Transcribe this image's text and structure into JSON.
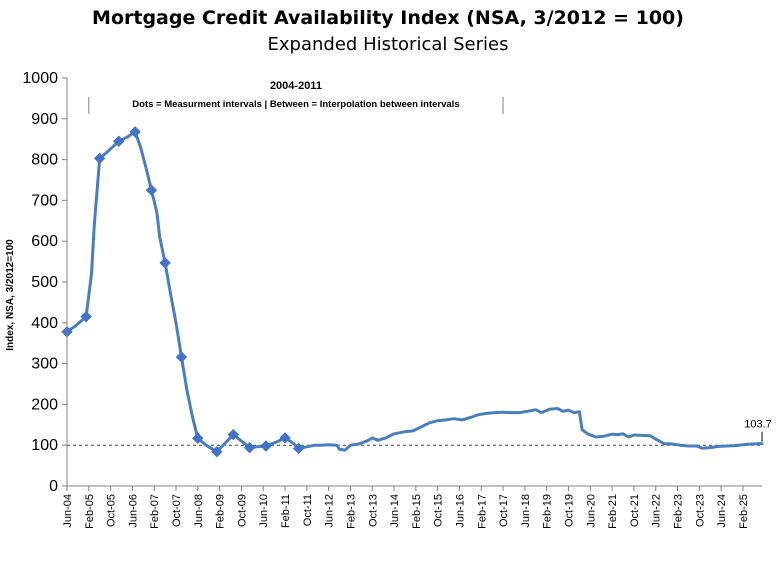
{
  "chart_data": {
    "type": "line",
    "title": "Mortgage Credit Availability Index (NSA, 3/2012 = 100)",
    "subtitle": "Expanded Historical Series",
    "ylabel": "Index, NSA, 3/2012=100",
    "ylim": [
      0,
      1000
    ],
    "yticks": [
      0,
      100,
      200,
      300,
      400,
      500,
      600,
      700,
      800,
      900,
      1000
    ],
    "x_tick_labels": [
      "Jun-04",
      "Feb-05",
      "Oct-05",
      "Jun-06",
      "Feb-07",
      "Oct-07",
      "Jun-08",
      "Feb-09",
      "Oct-09",
      "Jun-10",
      "Feb-11",
      "Oct-11",
      "Jun-12",
      "Feb-13",
      "Oct-13",
      "Jun-14",
      "Feb-15",
      "Oct-15",
      "Jun-16",
      "Feb-17",
      "Oct-17",
      "Jun-18",
      "Feb-19",
      "Oct-19",
      "Jun-20",
      "Feb-21",
      "Oct-21",
      "Jun-22",
      "Feb-23",
      "Oct-23",
      "Jun-24",
      "Feb-25"
    ],
    "x_start": "2004-06",
    "x_end": "2025-09",
    "reference_line": 100,
    "annotation": {
      "heading": "2004-2011",
      "text": "Dots = Measurment intervals  |  Between = Interpolation between intervals",
      "x_from": "2005-02",
      "x_to": "2017-10"
    },
    "end_label": "103.7",
    "series": [
      {
        "color": "#4a7ebb",
        "marker_color": "#4472c4",
        "measurement_points": [
          [
            "2004-06",
            378
          ],
          [
            "2005-01",
            415
          ],
          [
            "2005-06",
            803
          ],
          [
            "2006-01",
            845
          ],
          [
            "2006-07",
            868
          ],
          [
            "2007-01",
            725
          ],
          [
            "2007-06",
            547
          ],
          [
            "2007-12",
            316
          ],
          [
            "2008-06",
            117
          ],
          [
            "2009-01",
            84
          ],
          [
            "2009-07",
            126
          ],
          [
            "2010-01",
            94
          ],
          [
            "2010-07",
            98
          ],
          [
            "2011-02",
            118
          ],
          [
            "2011-07",
            92
          ]
        ],
        "points": [
          [
            "2004-06",
            378
          ],
          [
            "2004-09",
            392
          ],
          [
            "2005-01",
            415
          ],
          [
            "2005-03",
            520
          ],
          [
            "2005-04",
            640
          ],
          [
            "2005-06",
            803
          ],
          [
            "2005-09",
            820
          ],
          [
            "2006-01",
            845
          ],
          [
            "2006-04",
            855
          ],
          [
            "2006-07",
            868
          ],
          [
            "2006-09",
            830
          ],
          [
            "2006-11",
            780
          ],
          [
            "2007-01",
            725
          ],
          [
            "2007-03",
            670
          ],
          [
            "2007-04",
            610
          ],
          [
            "2007-06",
            547
          ],
          [
            "2007-08",
            470
          ],
          [
            "2007-10",
            400
          ],
          [
            "2007-12",
            316
          ],
          [
            "2008-02",
            235
          ],
          [
            "2008-04",
            170
          ],
          [
            "2008-06",
            117
          ],
          [
            "2008-09",
            100
          ],
          [
            "2009-01",
            84
          ],
          [
            "2009-04",
            105
          ],
          [
            "2009-07",
            126
          ],
          [
            "2009-10",
            110
          ],
          [
            "2010-01",
            94
          ],
          [
            "2010-04",
            96
          ],
          [
            "2010-07",
            98
          ],
          [
            "2010-11",
            108
          ],
          [
            "2011-02",
            118
          ],
          [
            "2011-05",
            105
          ],
          [
            "2011-07",
            92
          ],
          [
            "2011-10",
            96
          ],
          [
            "2012-01",
            100
          ],
          [
            "2012-03",
            100
          ],
          [
            "2012-06",
            101
          ],
          [
            "2012-09",
            100
          ],
          [
            "2012-10",
            90
          ],
          [
            "2012-12",
            88
          ],
          [
            "2013-02",
            100
          ],
          [
            "2013-05",
            103
          ],
          [
            "2013-08",
            110
          ],
          [
            "2013-10",
            118
          ],
          [
            "2013-12",
            112
          ],
          [
            "2014-03",
            118
          ],
          [
            "2014-06",
            128
          ],
          [
            "2014-10",
            133
          ],
          [
            "2015-01",
            135
          ],
          [
            "2015-04",
            145
          ],
          [
            "2015-07",
            155
          ],
          [
            "2015-10",
            160
          ],
          [
            "2016-01",
            162
          ],
          [
            "2016-04",
            165
          ],
          [
            "2016-07",
            162
          ],
          [
            "2016-10",
            168
          ],
          [
            "2017-01",
            175
          ],
          [
            "2017-04",
            178
          ],
          [
            "2017-07",
            180
          ],
          [
            "2017-10",
            181
          ],
          [
            "2018-01",
            180
          ],
          [
            "2018-04",
            180
          ],
          [
            "2018-07",
            183
          ],
          [
            "2018-10",
            187
          ],
          [
            "2018-12",
            180
          ],
          [
            "2019-03",
            188
          ],
          [
            "2019-06",
            190
          ],
          [
            "2019-08",
            183
          ],
          [
            "2019-10",
            186
          ],
          [
            "2019-12",
            180
          ],
          [
            "2020-02",
            182
          ],
          [
            "2020-03",
            138
          ],
          [
            "2020-05",
            128
          ],
          [
            "2020-08",
            120
          ],
          [
            "2020-11",
            122
          ],
          [
            "2021-02",
            127
          ],
          [
            "2021-04",
            126
          ],
          [
            "2021-06",
            128
          ],
          [
            "2021-08",
            120
          ],
          [
            "2021-10",
            125
          ],
          [
            "2022-01",
            124
          ],
          [
            "2022-04",
            123
          ],
          [
            "2022-06",
            115
          ],
          [
            "2022-09",
            104
          ],
          [
            "2022-12",
            103
          ],
          [
            "2023-03",
            100
          ],
          [
            "2023-06",
            98
          ],
          [
            "2023-09",
            98
          ],
          [
            "2023-11",
            93
          ],
          [
            "2024-02",
            94
          ],
          [
            "2024-05",
            97
          ],
          [
            "2024-08",
            98
          ],
          [
            "2024-11",
            99
          ],
          [
            "2025-02",
            101
          ],
          [
            "2025-05",
            103
          ],
          [
            "2025-08",
            104
          ],
          [
            "2025-09",
            103.7
          ]
        ]
      }
    ]
  }
}
